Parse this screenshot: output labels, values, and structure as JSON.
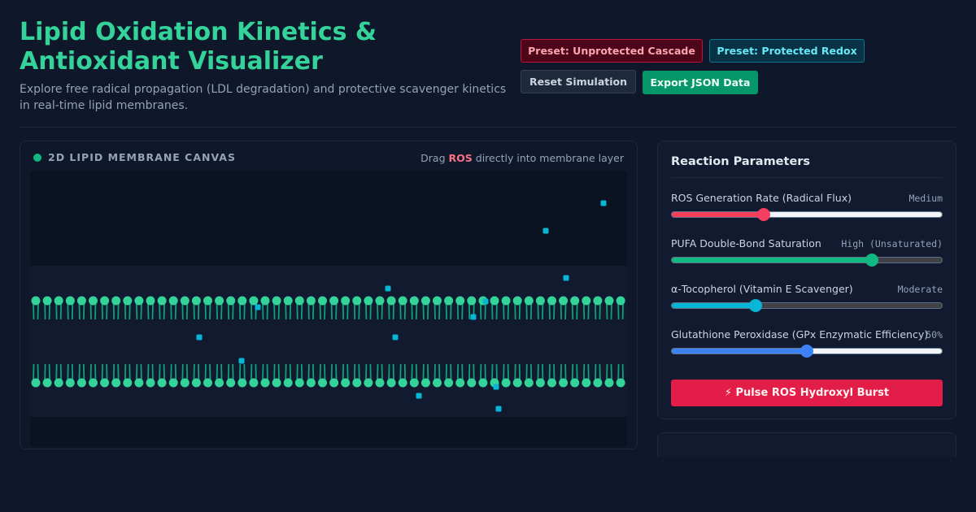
{
  "header": {
    "title": "Lipid Oxidation Kinetics & Antioxidant Visualizer",
    "subtitle": "Explore free radical propagation (LDL degradation) and protective scavenger kinetics in real-time lipid membranes."
  },
  "toolbar": {
    "preset_unprotected": "Preset: Unprotected Cascade",
    "preset_protected": "Preset: Protected Redox",
    "reset": "Reset Simulation",
    "export": "Export JSON Data"
  },
  "canvas": {
    "title": "2D LIPID MEMBRANE CANVAS",
    "hint_prefix": "Drag",
    "hint_keyword": "ROS",
    "hint_suffix": "directly into membrane layer",
    "lipid_count_per_leaflet": 52,
    "ros_particles_count": 13
  },
  "parameters": {
    "title": "Reaction Parameters",
    "sliders": [
      {
        "label": "ROS Generation Rate (Radical Flux)",
        "value": "Medium",
        "level": 0.34,
        "color": "#f43f5e",
        "rest": "#f1f5f9"
      },
      {
        "label": "PUFA Double-Bond Saturation",
        "value": "High (Unsaturated)",
        "level": 0.74,
        "color": "#10b981",
        "rest": "#3f3f46"
      },
      {
        "label": "α-Tocopherol (Vitamin E Scavenger)",
        "value": "Moderate",
        "level": 0.31,
        "color": "#06b6d4",
        "rest": "#3f3f46"
      },
      {
        "label": "Glutathione Peroxidase (GPx Enzymatic Efficiency)",
        "value": "50%",
        "level": 0.5,
        "color": "#3b82f6",
        "rest": "#f1f5f9"
      }
    ],
    "pulse_button": "⚡ Pulse ROS Hydroxyl Burst"
  },
  "colors": {
    "accent": "#34d399",
    "lipid_head": "#34d399",
    "ros_particle": "#06b6d4"
  }
}
